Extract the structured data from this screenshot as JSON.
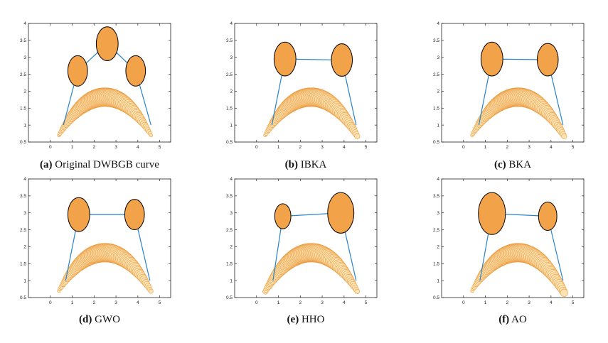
{
  "figure": {
    "panels": [
      {
        "label": "(a)",
        "caption": "Original DWBGB curve"
      },
      {
        "label": "(b)",
        "caption": "IBKA"
      },
      {
        "label": "(c)",
        "caption": "BKA"
      },
      {
        "label": "(d)",
        "caption": "GWO"
      },
      {
        "label": "(e)",
        "caption": "HHO"
      },
      {
        "label": "(f)",
        "caption": "AO"
      }
    ]
  },
  "colors": {
    "bead_fill": "#f2a34a",
    "bead_stroke": "#000000",
    "frame_line": "#2a82c9",
    "band_stroke": "#ea9a3c",
    "band_fill": "#fde3b3",
    "axis": "#222222"
  },
  "chart_data": [
    {
      "type": "scatter",
      "title": "",
      "xlabel": "",
      "ylabel": "",
      "xlim": [
        -1,
        5.5
      ],
      "ylim": [
        0.5,
        4
      ],
      "xticks": [
        0,
        1,
        2,
        3,
        4,
        5
      ],
      "yticks": [
        0.5,
        1,
        1.5,
        2,
        2.5,
        3,
        3.5,
        4
      ],
      "circles": [
        {
          "x": 1.25,
          "y": 2.6,
          "r": 0.45
        },
        {
          "x": 2.6,
          "y": 3.4,
          "r": 0.5
        },
        {
          "x": 3.9,
          "y": 2.6,
          "r": 0.45
        }
      ],
      "frame": [
        {
          "x": 0.6,
          "y": 1.0
        },
        {
          "x": 1.25,
          "y": 2.6
        },
        {
          "x": 2.6,
          "y": 3.4
        },
        {
          "x": 3.9,
          "y": 2.6
        },
        {
          "x": 4.6,
          "y": 1.0
        }
      ],
      "curve": {
        "x_start": 0.4,
        "x_end": 4.6,
        "end_height": 0.75,
        "peak": 2.1,
        "start_width": 0.1,
        "max_width": 0.55,
        "end_width": 0.1
      }
    },
    {
      "type": "scatter",
      "title": "",
      "xlabel": "",
      "ylabel": "",
      "xlim": [
        -1,
        5.5
      ],
      "ylim": [
        0.5,
        4
      ],
      "xticks": [
        0,
        1,
        2,
        3,
        4,
        5
      ],
      "yticks": [
        0.5,
        1,
        1.5,
        2,
        2.5,
        3,
        3.5,
        4
      ],
      "circles": [
        {
          "x": 1.3,
          "y": 2.95,
          "r": 0.5
        },
        {
          "x": 3.9,
          "y": 2.92,
          "r": 0.48
        }
      ],
      "frame": [
        {
          "x": 0.7,
          "y": 1.0
        },
        {
          "x": 1.3,
          "y": 2.95
        },
        {
          "x": 3.9,
          "y": 2.92
        },
        {
          "x": 4.55,
          "y": 1.0
        }
      ],
      "curve": {
        "x_start": 0.4,
        "x_end": 4.6,
        "end_height": 0.75,
        "peak": 2.1,
        "start_width": 0.1,
        "max_width": 0.55,
        "end_width": 0.16
      }
    },
    {
      "type": "scatter",
      "title": "",
      "xlabel": "",
      "ylabel": "",
      "xlim": [
        -1,
        5.5
      ],
      "ylim": [
        0.5,
        4
      ],
      "xticks": [
        0,
        1,
        2,
        3,
        4,
        5
      ],
      "yticks": [
        0.5,
        1,
        1.5,
        2,
        2.5,
        3,
        3.5,
        4
      ],
      "circles": [
        {
          "x": 1.3,
          "y": 2.95,
          "r": 0.5
        },
        {
          "x": 3.85,
          "y": 2.93,
          "r": 0.48
        }
      ],
      "frame": [
        {
          "x": 0.7,
          "y": 1.0
        },
        {
          "x": 1.3,
          "y": 2.95
        },
        {
          "x": 3.85,
          "y": 2.93
        },
        {
          "x": 4.55,
          "y": 1.0
        }
      ],
      "curve": {
        "x_start": 0.4,
        "x_end": 4.6,
        "end_height": 0.75,
        "peak": 2.1,
        "start_width": 0.1,
        "max_width": 0.55,
        "end_width": 0.16
      }
    },
    {
      "type": "scatter",
      "title": "",
      "xlabel": "",
      "ylabel": "",
      "xlim": [
        -1,
        5.5
      ],
      "ylim": [
        0.5,
        4
      ],
      "xticks": [
        0,
        1,
        2,
        3,
        4,
        5
      ],
      "yticks": [
        0.5,
        1,
        1.5,
        2,
        2.5,
        3,
        3.5,
        4
      ],
      "circles": [
        {
          "x": 1.3,
          "y": 2.95,
          "r": 0.5
        },
        {
          "x": 3.85,
          "y": 2.95,
          "r": 0.45
        }
      ],
      "frame": [
        {
          "x": 0.7,
          "y": 1.0
        },
        {
          "x": 1.3,
          "y": 2.95
        },
        {
          "x": 3.85,
          "y": 2.95
        },
        {
          "x": 4.55,
          "y": 1.0
        }
      ],
      "curve": {
        "x_start": 0.4,
        "x_end": 4.6,
        "end_height": 0.75,
        "peak": 2.1,
        "start_width": 0.1,
        "max_width": 0.55,
        "end_width": 0.13
      }
    },
    {
      "type": "scatter",
      "title": "",
      "xlabel": "",
      "ylabel": "",
      "xlim": [
        -1,
        5.5
      ],
      "ylim": [
        0.5,
        4
      ],
      "xticks": [
        0,
        1,
        2,
        3,
        4,
        5
      ],
      "yticks": [
        0.5,
        1,
        1.5,
        2,
        2.5,
        3,
        3.5,
        4
      ],
      "circles": [
        {
          "x": 1.2,
          "y": 2.9,
          "r": 0.37
        },
        {
          "x": 3.85,
          "y": 3.0,
          "r": 0.6
        }
      ],
      "frame": [
        {
          "x": 0.75,
          "y": 1.0
        },
        {
          "x": 1.2,
          "y": 2.9
        },
        {
          "x": 3.85,
          "y": 3.0
        },
        {
          "x": 4.55,
          "y": 1.0
        }
      ],
      "curve": {
        "x_start": 0.4,
        "x_end": 4.6,
        "end_height": 0.75,
        "peak": 2.1,
        "start_width": 0.15,
        "max_width": 0.55,
        "end_width": 0.14
      }
    },
    {
      "type": "scatter",
      "title": "",
      "xlabel": "",
      "ylabel": "",
      "xlim": [
        -1,
        5.5
      ],
      "ylim": [
        0.5,
        4
      ],
      "xticks": [
        0,
        1,
        2,
        3,
        4,
        5
      ],
      "yticks": [
        0.5,
        1,
        1.5,
        2,
        2.5,
        3,
        3.5,
        4
      ],
      "circles": [
        {
          "x": 1.3,
          "y": 2.98,
          "r": 0.62
        },
        {
          "x": 3.85,
          "y": 2.9,
          "r": 0.42
        }
      ],
      "frame": [
        {
          "x": 0.75,
          "y": 1.0
        },
        {
          "x": 1.3,
          "y": 2.98
        },
        {
          "x": 3.85,
          "y": 2.9
        },
        {
          "x": 4.55,
          "y": 1.0
        }
      ],
      "curve": {
        "x_start": 0.4,
        "x_end": 4.6,
        "end_height": 0.75,
        "peak": 2.1,
        "start_width": 0.1,
        "max_width": 0.55,
        "end_width": 0.22
      }
    }
  ]
}
